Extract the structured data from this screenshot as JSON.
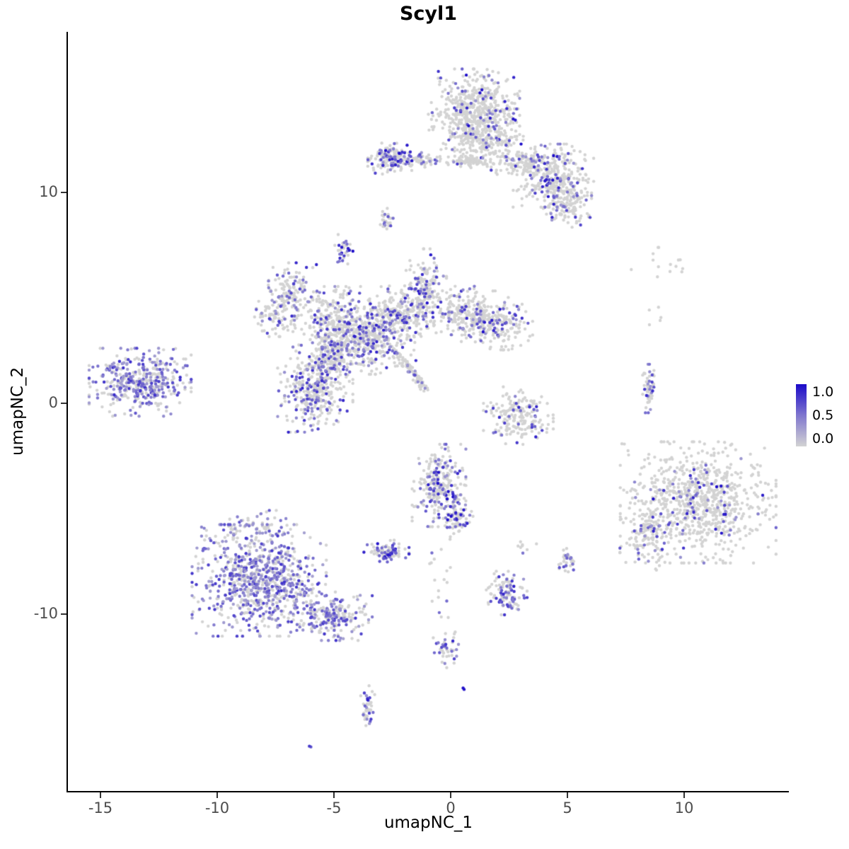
{
  "figure": {
    "background": "#FFFFFF"
  },
  "chart_data": {
    "type": "scatter",
    "title": "Scyl1",
    "xlabel": "umapNC_1",
    "ylabel": "umapNC_2",
    "x_ticks": [
      -15,
      -10,
      -5,
      0,
      5,
      10
    ],
    "y_ticks": [
      -10,
      0,
      10
    ],
    "xlim": [
      -16.4,
      14.5
    ],
    "ylim": [
      -18.4,
      17.6
    ],
    "grid": false,
    "legend": {
      "position": "right",
      "labels": [
        "1.0",
        "0.5",
        "0.0"
      ],
      "low_color": "#D3D3D3",
      "high_color": "#1B0AC9"
    },
    "point_radius_px": 2.2,
    "clusters": [
      {
        "id": "top-main",
        "cx": 1.0,
        "cy": 13.9,
        "sx": 0.85,
        "sy": 0.85,
        "n": 520,
        "frac": 0.1,
        "vlo": 0.3,
        "vhi": 1.0
      },
      {
        "id": "top-main-lower",
        "cx": 1.5,
        "cy": 12.5,
        "sx": 0.8,
        "sy": 0.55,
        "n": 230,
        "frac": 0.1,
        "vlo": 0.3,
        "vhi": 0.9
      },
      {
        "id": "top-left-streak",
        "cx": 0.8,
        "cy": 11.45,
        "sx": 0.55,
        "sy": 0.12,
        "n": 70,
        "frac": 0.08,
        "vlo": 0.3,
        "vhi": 0.8
      },
      {
        "id": "top-bridge",
        "cx": 3.0,
        "cy": 11.4,
        "sx": 0.55,
        "sy": 0.3,
        "n": 110,
        "frac": 0.1,
        "vlo": 0.3,
        "vhi": 0.8
      },
      {
        "id": "top-right-lobe",
        "cx": 4.4,
        "cy": 10.8,
        "sx": 0.75,
        "sy": 0.65,
        "n": 330,
        "frac": 0.17,
        "vlo": 0.3,
        "vhi": 1.0
      },
      {
        "id": "top-right-tail",
        "cx": 5.0,
        "cy": 9.5,
        "sx": 0.45,
        "sy": 0.5,
        "n": 140,
        "frac": 0.18,
        "vlo": 0.3,
        "vhi": 0.9
      },
      {
        "id": "upper-left-blob",
        "cx": -2.4,
        "cy": 11.6,
        "sx": 0.5,
        "sy": 0.33,
        "n": 170,
        "frac": 0.3,
        "vlo": 0.3,
        "vhi": 1.0
      },
      {
        "id": "upper-left-wisp",
        "cx": -1.2,
        "cy": 11.5,
        "sx": 0.45,
        "sy": 0.15,
        "n": 40,
        "frac": 0.15,
        "vlo": 0.3,
        "vhi": 0.8
      },
      {
        "id": "tiny-mid-upper",
        "cx": -2.8,
        "cy": 8.7,
        "sx": 0.15,
        "sy": 0.3,
        "n": 26,
        "frac": 0.35,
        "vlo": 0.3,
        "vhi": 0.9
      },
      {
        "id": "small-upper",
        "cx": -4.6,
        "cy": 7.2,
        "sx": 0.2,
        "sy": 0.35,
        "n": 34,
        "frac": 0.45,
        "vlo": 0.4,
        "vhi": 1.0
      },
      {
        "id": "mid-upperleft-arm1",
        "cx": -6.9,
        "cy": 5.4,
        "sx": 0.5,
        "sy": 0.55,
        "n": 110,
        "frac": 0.25,
        "vlo": 0.3,
        "vhi": 0.9
      },
      {
        "id": "mid-upperleft-arm2",
        "cx": -7.4,
        "cy": 4.2,
        "sx": 0.45,
        "sy": 0.45,
        "n": 90,
        "frac": 0.2,
        "vlo": 0.3,
        "vhi": 0.8
      },
      {
        "id": "mid-main",
        "cx": -4.8,
        "cy": 3.7,
        "sx": 0.85,
        "sy": 0.8,
        "n": 420,
        "frac": 0.22,
        "vlo": 0.3,
        "vhi": 0.9
      },
      {
        "id": "mid-lower-lobe",
        "cx": -5.8,
        "cy": 0.7,
        "sx": 0.7,
        "sy": 0.9,
        "n": 380,
        "frac": 0.3,
        "vlo": 0.3,
        "vhi": 0.9
      },
      {
        "id": "mid-bridge",
        "cx": -4.9,
        "cy": 2.2,
        "sx": 0.5,
        "sy": 0.5,
        "n": 140,
        "frac": 0.25,
        "vlo": 0.3,
        "vhi": 0.8
      },
      {
        "id": "mid-center",
        "cx": -3.1,
        "cy": 3.1,
        "sx": 0.7,
        "sy": 0.75,
        "n": 300,
        "frac": 0.3,
        "vlo": 0.3,
        "vhi": 0.95
      },
      {
        "id": "mid-right1",
        "cx": -1.8,
        "cy": 4.3,
        "sx": 0.75,
        "sy": 0.55,
        "n": 230,
        "frac": 0.2,
        "vlo": 0.3,
        "vhi": 0.9
      },
      {
        "id": "mid-up-arm",
        "cx": -1.1,
        "cy": 5.6,
        "sx": 0.4,
        "sy": 0.75,
        "n": 160,
        "frac": 0.25,
        "vlo": 0.3,
        "vhi": 1.0
      },
      {
        "id": "mid-right2",
        "cx": 0.7,
        "cy": 4.4,
        "sx": 0.7,
        "sy": 0.5,
        "n": 190,
        "frac": 0.2,
        "vlo": 0.3,
        "vhi": 0.9
      },
      {
        "id": "mid-right3",
        "cx": 1.9,
        "cy": 3.8,
        "sx": 0.7,
        "sy": 0.55,
        "n": 210,
        "frac": 0.18,
        "vlo": 0.3,
        "vhi": 1.0
      },
      {
        "id": "diag-streak",
        "type": "line",
        "x1": -2.4,
        "y1": 2.5,
        "x2": -1.0,
        "y2": 0.6,
        "jitter": 0.08,
        "n": 90,
        "frac": 0.15,
        "vlo": 0.3,
        "vhi": 0.7
      },
      {
        "id": "far-left",
        "cx": -13.3,
        "cy": 1.0,
        "sx": 0.95,
        "sy": 0.7,
        "n": 430,
        "frac": 0.55,
        "vlo": 0.25,
        "vhi": 0.85
      },
      {
        "id": "right-of-center-small",
        "cx": 2.9,
        "cy": -0.6,
        "sx": 0.65,
        "sy": 0.6,
        "n": 190,
        "frac": 0.12,
        "vlo": 0.3,
        "vhi": 0.9
      },
      {
        "id": "vertical-strip-right",
        "cx": 8.5,
        "cy": 0.7,
        "sx": 0.12,
        "sy": 0.5,
        "n": 55,
        "frac": 0.3,
        "vlo": 0.3,
        "vhi": 0.9
      },
      {
        "id": "right-main",
        "cx": 10.6,
        "cy": -4.7,
        "sx": 1.45,
        "sy": 1.25,
        "n": 850,
        "frac": 0.11,
        "vlo": 0.3,
        "vhi": 1.0
      },
      {
        "id": "right-arm",
        "cx": 8.4,
        "cy": -6.3,
        "sx": 0.5,
        "sy": 0.8,
        "n": 120,
        "frac": 0.15,
        "vlo": 0.3,
        "vhi": 1.0
      },
      {
        "id": "bottom-left-main",
        "cx": -8.2,
        "cy": -8.4,
        "sx": 1.25,
        "sy": 1.15,
        "n": 850,
        "frac": 0.55,
        "vlo": 0.25,
        "vhi": 0.8
      },
      {
        "id": "bottom-left-arm",
        "cx": -5.2,
        "cy": -10.1,
        "sx": 0.8,
        "sy": 0.5,
        "n": 220,
        "frac": 0.45,
        "vlo": 0.25,
        "vhi": 0.8
      },
      {
        "id": "bottom-left-top-sparse",
        "cx": -8.6,
        "cy": -6.0,
        "sx": 0.9,
        "sy": 0.4,
        "n": 70,
        "frac": 0.4,
        "vlo": 0.25,
        "vhi": 0.8
      },
      {
        "id": "center-low",
        "cx": -0.5,
        "cy": -3.9,
        "sx": 0.5,
        "sy": 0.85,
        "n": 260,
        "frac": 0.25,
        "vlo": 0.3,
        "vhi": 1.0
      },
      {
        "id": "center-low-ext",
        "cx": 0.3,
        "cy": -5.3,
        "sx": 0.3,
        "sy": 0.45,
        "n": 80,
        "frac": 0.3,
        "vlo": 0.3,
        "vhi": 1.0
      },
      {
        "id": "small-dense-center",
        "cx": -2.75,
        "cy": -7.1,
        "sx": 0.42,
        "sy": 0.28,
        "n": 90,
        "frac": 0.45,
        "vlo": 0.4,
        "vhi": 1.0
      },
      {
        "id": "small-lower-center",
        "cx": 2.4,
        "cy": -9.0,
        "sx": 0.38,
        "sy": 0.45,
        "n": 110,
        "frac": 0.4,
        "vlo": 0.3,
        "vhi": 0.9
      },
      {
        "id": "tiny-lower-right",
        "cx": 5.0,
        "cy": -7.5,
        "sx": 0.18,
        "sy": 0.3,
        "n": 32,
        "frac": 0.45,
        "vlo": 0.3,
        "vhi": 0.9
      },
      {
        "id": "tiny-pair",
        "cx": 3.1,
        "cy": -6.8,
        "sx": 0.25,
        "sy": 0.15,
        "n": 8,
        "frac": 0.1,
        "vlo": 0.3,
        "vhi": 0.6
      },
      {
        "id": "trail-sparse",
        "cx": -0.4,
        "cy": -8.6,
        "sx": 0.3,
        "sy": 1.3,
        "n": 18,
        "frac": 0.1,
        "vlo": 0.3,
        "vhi": 0.6
      },
      {
        "id": "small-bottom",
        "cx": -0.15,
        "cy": -11.6,
        "sx": 0.28,
        "sy": 0.42,
        "n": 42,
        "frac": 0.45,
        "vlo": 0.3,
        "vhi": 0.9
      },
      {
        "id": "bottom-strip",
        "cx": -3.55,
        "cy": -14.4,
        "sx": 0.14,
        "sy": 0.5,
        "n": 40,
        "frac": 0.4,
        "vlo": 0.3,
        "vhi": 0.9
      },
      {
        "id": "blue-dot",
        "cx": 0.6,
        "cy": -13.5,
        "sx": 0.06,
        "sy": 0.06,
        "n": 2,
        "frac": 1.0,
        "vlo": 0.95,
        "vhi": 1.0
      },
      {
        "id": "purple-dot",
        "cx": -6.1,
        "cy": -16.3,
        "sx": 0.08,
        "sy": 0.06,
        "n": 2,
        "frac": 1.0,
        "vlo": 0.6,
        "vhi": 0.8
      },
      {
        "id": "top-right-sparse",
        "cx": 9.2,
        "cy": 6.6,
        "sx": 0.9,
        "sy": 0.45,
        "n": 14,
        "frac": 0.0,
        "vlo": 0,
        "vhi": 0
      },
      {
        "id": "top-right-sparse2",
        "cx": 8.7,
        "cy": 4.2,
        "sx": 0.3,
        "sy": 0.35,
        "n": 5,
        "frac": 0.0,
        "vlo": 0,
        "vhi": 0
      }
    ]
  }
}
